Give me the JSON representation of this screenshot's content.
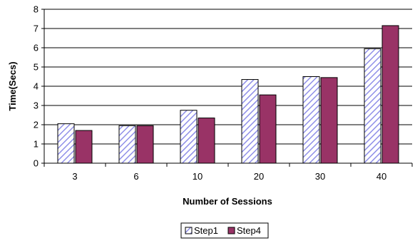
{
  "chart_data": {
    "type": "bar",
    "title": "",
    "xlabel": "Number of Sessions",
    "ylabel": "Time(Secs)",
    "categories": [
      "3",
      "6",
      "10",
      "20",
      "30",
      "40"
    ],
    "series": [
      {
        "name": "Step1",
        "values": [
          2.05,
          1.95,
          2.75,
          4.35,
          4.5,
          5.95
        ],
        "color": "#ccccff",
        "pattern": "diagonal-hatch"
      },
      {
        "name": "Step4",
        "values": [
          1.7,
          1.95,
          2.35,
          3.55,
          4.45,
          7.15
        ],
        "color": "#993366",
        "pattern": "solid"
      }
    ],
    "ylim": [
      0,
      8
    ],
    "yticks": [
      "0",
      "1",
      "2",
      "3",
      "4",
      "5",
      "6",
      "7",
      "8"
    ],
    "grid": true,
    "legend_position": "bottom"
  }
}
